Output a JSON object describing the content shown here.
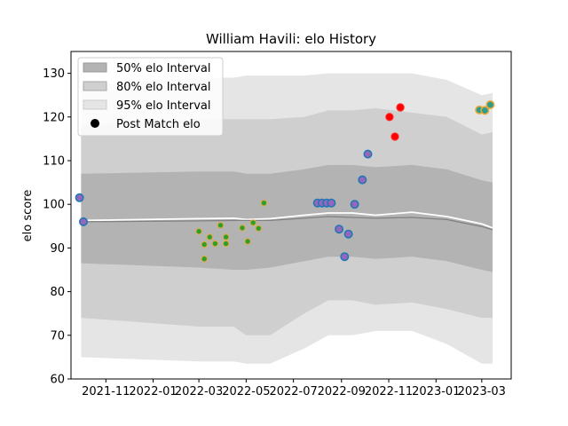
{
  "chart_data": {
    "type": "area",
    "title": "William Havili: elo History",
    "xlabel": "",
    "ylabel": "elo score",
    "xlim": [
      "2021-09-17",
      "2023-04-08"
    ],
    "ylim": [
      60,
      135
    ],
    "x_ticks": [
      "2021-11",
      "2022-01",
      "2022-03",
      "2022-05",
      "2022-07",
      "2022-09",
      "2022-11",
      "2023-01",
      "2023-03"
    ],
    "y_ticks": [
      60,
      70,
      80,
      90,
      100,
      110,
      120,
      130
    ],
    "grid": false,
    "legend": {
      "placement": "top-left",
      "entries": [
        "50% elo Interval",
        "80% elo Interval",
        "95% elo Interval",
        "Post Match elo"
      ]
    },
    "colors": {
      "band50": "#b3b3b3",
      "band80": "#cfcfcf",
      "band95": "#e5e5e5",
      "mean_line": "#ffffff",
      "median_line": "#808080",
      "marker_face_a": "#2ca02c",
      "marker_edge_a": "#1f77b4",
      "marker_face_b": "#ff0000",
      "marker_edge_b": "#9467bd"
    },
    "interval_series": {
      "x": [
        "2021-09-30",
        "2022-03-01",
        "2022-04-15",
        "2022-05-01",
        "2022-06-01",
        "2022-07-15",
        "2022-08-15",
        "2022-09-15",
        "2022-10-15",
        "2022-12-01",
        "2023-01-15",
        "2023-03-01",
        "2023-03-15"
      ],
      "mean": [
        96.3,
        96.7,
        96.8,
        96.5,
        96.7,
        97.5,
        98.0,
        98.0,
        97.5,
        98.2,
        97.2,
        95.5,
        94.6
      ],
      "median": [
        96.0,
        96.2,
        96.3,
        96.3,
        96.3,
        96.8,
        97.2,
        97.0,
        96.8,
        97.0,
        96.5,
        94.9,
        94.2
      ],
      "p50_low": [
        86.5,
        85.5,
        85.0,
        85.0,
        85.5,
        87.0,
        88.0,
        88.0,
        87.5,
        88.0,
        87.0,
        85.0,
        84.5
      ],
      "p50_high": [
        107.0,
        107.5,
        107.5,
        107.0,
        107.0,
        108.0,
        109.0,
        109.0,
        108.5,
        109.0,
        108.0,
        105.5,
        105.0
      ],
      "p80_low": [
        74.0,
        72.0,
        72.0,
        70.0,
        70.0,
        75.0,
        78.0,
        78.0,
        77.0,
        77.5,
        76.0,
        74.0,
        74.0
      ],
      "p80_high": [
        118.0,
        119.5,
        119.5,
        119.5,
        119.5,
        120.0,
        121.5,
        121.5,
        122.0,
        121.0,
        120.0,
        116.0,
        116.5
      ],
      "p95_low": [
        65.0,
        64.0,
        64.0,
        63.5,
        63.5,
        67.0,
        70.0,
        70.0,
        71.0,
        71.0,
        68.0,
        63.5,
        63.5
      ],
      "p95_high": [
        127.0,
        129.0,
        129.0,
        129.5,
        129.5,
        129.5,
        130.0,
        130.0,
        130.0,
        130.0,
        128.5,
        125.0,
        125.5
      ]
    },
    "post_match_points": [
      {
        "x": "2021-09-28",
        "y": 101.5,
        "group": "b"
      },
      {
        "x": "2021-10-03",
        "y": 96.0,
        "group": "b"
      },
      {
        "x": "2022-03-01",
        "y": 93.8,
        "group": "a"
      },
      {
        "x": "2022-03-08",
        "y": 90.8,
        "group": "a"
      },
      {
        "x": "2022-03-08",
        "y": 87.5,
        "group": "a"
      },
      {
        "x": "2022-03-15",
        "y": 92.5,
        "group": "a"
      },
      {
        "x": "2022-03-22",
        "y": 91.0,
        "group": "a"
      },
      {
        "x": "2022-03-29",
        "y": 95.2,
        "group": "a"
      },
      {
        "x": "2022-04-05",
        "y": 92.5,
        "group": "a"
      },
      {
        "x": "2022-04-05",
        "y": 91.0,
        "group": "a"
      },
      {
        "x": "2022-04-26",
        "y": 94.6,
        "group": "a"
      },
      {
        "x": "2022-05-03",
        "y": 91.5,
        "group": "a"
      },
      {
        "x": "2022-05-10",
        "y": 95.8,
        "group": "a"
      },
      {
        "x": "2022-05-17",
        "y": 94.5,
        "group": "a"
      },
      {
        "x": "2022-05-24",
        "y": 100.3,
        "group": "a"
      },
      {
        "x": "2022-08-01",
        "y": 100.3,
        "group": "b"
      },
      {
        "x": "2022-08-07",
        "y": 100.3,
        "group": "b"
      },
      {
        "x": "2022-08-13",
        "y": 100.3,
        "group": "b"
      },
      {
        "x": "2022-08-19",
        "y": 100.3,
        "group": "b"
      },
      {
        "x": "2022-08-29",
        "y": 94.3,
        "group": "b"
      },
      {
        "x": "2022-09-05",
        "y": 88.0,
        "group": "b"
      },
      {
        "x": "2022-09-10",
        "y": 93.2,
        "group": "b"
      },
      {
        "x": "2022-09-18",
        "y": 100.0,
        "group": "b"
      },
      {
        "x": "2022-09-28",
        "y": 105.6,
        "group": "b"
      },
      {
        "x": "2022-10-05",
        "y": 111.5,
        "group": "b"
      },
      {
        "x": "2022-11-02",
        "y": 120.0,
        "group": "r"
      },
      {
        "x": "2022-11-09",
        "y": 115.5,
        "group": "r"
      },
      {
        "x": "2022-11-16",
        "y": 122.2,
        "group": "r"
      },
      {
        "x": "2023-02-26",
        "y": 121.6,
        "group": "t"
      },
      {
        "x": "2023-03-05",
        "y": 121.5,
        "group": "t"
      },
      {
        "x": "2023-03-12",
        "y": 122.8,
        "group": "t"
      }
    ]
  }
}
